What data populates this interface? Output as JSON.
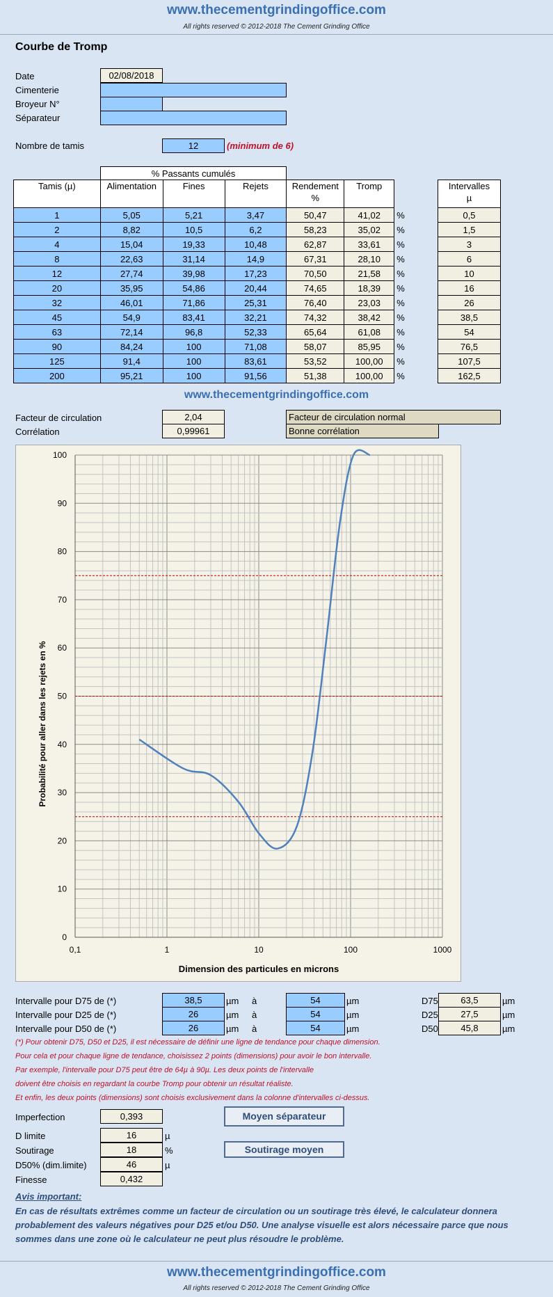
{
  "header": {
    "site": "www.thecementgrindingoffice.com",
    "rights": "All rights reserved © 2012-2018 The Cement Grinding Office"
  },
  "page_title": "Courbe de Tromp",
  "info": {
    "date_label": "Date",
    "date_value": "02/08/2018",
    "cimenterie_label": "Cimenterie",
    "cimenterie_value": "",
    "broyeur_label": "Broyeur N°",
    "broyeur_value": "",
    "separateur_label": "Séparateur",
    "separateur_value": ""
  },
  "tamis_count": {
    "label": "Nombre de tamis",
    "value": "12",
    "note": "(minimum de 6)"
  },
  "table": {
    "group_header": "% Passants cumulés",
    "col_tamis": "Tamis (µ)",
    "col_alim": "Alimentation",
    "col_fines": "Fines",
    "col_rejets": "Rejets",
    "col_rendement": "Rendement",
    "col_rendement_unit": "%",
    "col_tromp": "Tromp",
    "col_intervalles": "Intervalles",
    "col_intervalles_unit": "µ",
    "pct": "%",
    "rows": [
      {
        "tamis": "1",
        "alim": "5,05",
        "fines": "5,21",
        "rejets": "3,47",
        "rendement": "50,47",
        "tromp": "41,02",
        "interval": "0,5"
      },
      {
        "tamis": "2",
        "alim": "8,82",
        "fines": "10,5",
        "rejets": "6,2",
        "rendement": "58,23",
        "tromp": "35,02",
        "interval": "1,5"
      },
      {
        "tamis": "4",
        "alim": "15,04",
        "fines": "19,33",
        "rejets": "10,48",
        "rendement": "62,87",
        "tromp": "33,61",
        "interval": "3"
      },
      {
        "tamis": "8",
        "alim": "22,63",
        "fines": "31,14",
        "rejets": "14,9",
        "rendement": "67,31",
        "tromp": "28,10",
        "interval": "6"
      },
      {
        "tamis": "12",
        "alim": "27,74",
        "fines": "39,98",
        "rejets": "17,23",
        "rendement": "70,50",
        "tromp": "21,58",
        "interval": "10"
      },
      {
        "tamis": "20",
        "alim": "35,95",
        "fines": "54,86",
        "rejets": "20,44",
        "rendement": "74,65",
        "tromp": "18,39",
        "interval": "16"
      },
      {
        "tamis": "32",
        "alim": "46,01",
        "fines": "71,86",
        "rejets": "25,31",
        "rendement": "76,40",
        "tromp": "23,03",
        "interval": "26"
      },
      {
        "tamis": "45",
        "alim": "54,9",
        "fines": "83,41",
        "rejets": "32,21",
        "rendement": "74,32",
        "tromp": "38,42",
        "interval": "38,5"
      },
      {
        "tamis": "63",
        "alim": "72,14",
        "fines": "96,8",
        "rejets": "52,33",
        "rendement": "65,64",
        "tromp": "61,08",
        "interval": "54"
      },
      {
        "tamis": "90",
        "alim": "84,24",
        "fines": "100",
        "rejets": "71,08",
        "rendement": "58,07",
        "tromp": "85,95",
        "interval": "76,5"
      },
      {
        "tamis": "125",
        "alim": "91,4",
        "fines": "100",
        "rejets": "83,61",
        "rendement": "53,52",
        "tromp": "100,00",
        "interval": "107,5"
      },
      {
        "tamis": "200",
        "alim": "95,21",
        "fines": "100",
        "rejets": "91,56",
        "rendement": "51,38",
        "tromp": "100,00",
        "interval": "162,5"
      }
    ]
  },
  "circulation": {
    "label": "Facteur de circulation",
    "value": "2,04",
    "status": "Facteur de circulation normal"
  },
  "correlation": {
    "label": "Corrélation",
    "value": "0,99961",
    "status": "Bonne corrélation"
  },
  "chart_data": {
    "type": "line",
    "title": "",
    "xlabel": "Dimension des particules en microns",
    "ylabel": "Probabilité pour aller dans les rejets en %",
    "x_scale": "log",
    "xlim": [
      0.1,
      1000
    ],
    "ylim": [
      0,
      100
    ],
    "x_ticks": [
      "0,1",
      "1",
      "10",
      "100",
      "1000"
    ],
    "y_ticks": [
      "0",
      "10",
      "20",
      "30",
      "40",
      "50",
      "60",
      "70",
      "80",
      "90",
      "100"
    ],
    "grid": true,
    "legend": "none",
    "reference_lines_y": [
      25,
      50,
      75
    ],
    "series": [
      {
        "x": [
          0.5,
          1.5,
          3,
          6,
          10,
          16,
          26,
          38.5,
          54,
          76.5,
          107.5,
          162.5
        ],
        "y": [
          41.02,
          35.02,
          33.61,
          28.1,
          21.58,
          18.39,
          23.03,
          38.42,
          61.08,
          85.95,
          100,
          100
        ]
      }
    ],
    "colors": {
      "line": "#4f81bd",
      "reference": "#c00000",
      "plot_bg": "#f5f3e7"
    }
  },
  "intervals": {
    "d75_label": "Intervalle pour D75 de (*)",
    "d75_from": "38,5",
    "d75_to": "54",
    "d25_label": "Intervalle pour D25 de (*)",
    "d25_from": "26",
    "d25_to": "54",
    "d50_label": "Intervalle pour D50 de (*)",
    "d50_from": "26",
    "d50_to": "54",
    "unit": "µm",
    "a": "à",
    "d75_name": "D75",
    "d75_value": "63,5",
    "d25_name": "D25",
    "d25_value": "27,5",
    "d50_name": "D50",
    "d50_value": "45,8"
  },
  "notes": [
    "(*) Pour obtenir D75, D50 et D25, il est nécessaire de définir une ligne de tendance pour chaque dimension.",
    "Pour cela et pour chaque ligne de tendance, choisissez 2 points (dimensions) pour avoir le bon intervalle.",
    "Par exemple, l'intervalle pour D75 peut être de 64µ à 90µ. Les deux points de l'intervalle",
    "doivent être choisis en regardant la courbe Tromp pour obtenir un résultat réaliste.",
    "Et enfin, les deux points (dimensions) sont choisis exclusivement dans la colonne d'intervalles ci-dessus."
  ],
  "results": {
    "imperfection_label": "Imperfection",
    "imperfection_value": "0,393",
    "dlimite_label": "D limite",
    "dlimite_value": "16",
    "dlimite_unit": "µ",
    "soutirage_label": "Soutirage",
    "soutirage_value": "18",
    "soutirage_unit": "%",
    "d50dim_label": "D50% (dim.limite)",
    "d50dim_value": "46",
    "d50dim_unit": "µ",
    "finesse_label": "Finesse",
    "finesse_value": "0,432",
    "btn_moyen_separateur": "Moyen séparateur",
    "btn_soutirage_moyen": "Soutirage moyen"
  },
  "warning": {
    "title": "Avis important:",
    "text": "En cas de résultats extrêmes comme un facteur de circulation ou un soutirage très élevé, le calculateur donnera probablement des valeurs négatives pour D25 et/ou D50. Une analyse visuelle est alors nécessaire parce que nous sommes dans une zone où le calculateur ne peut plus résoudre le problème."
  }
}
